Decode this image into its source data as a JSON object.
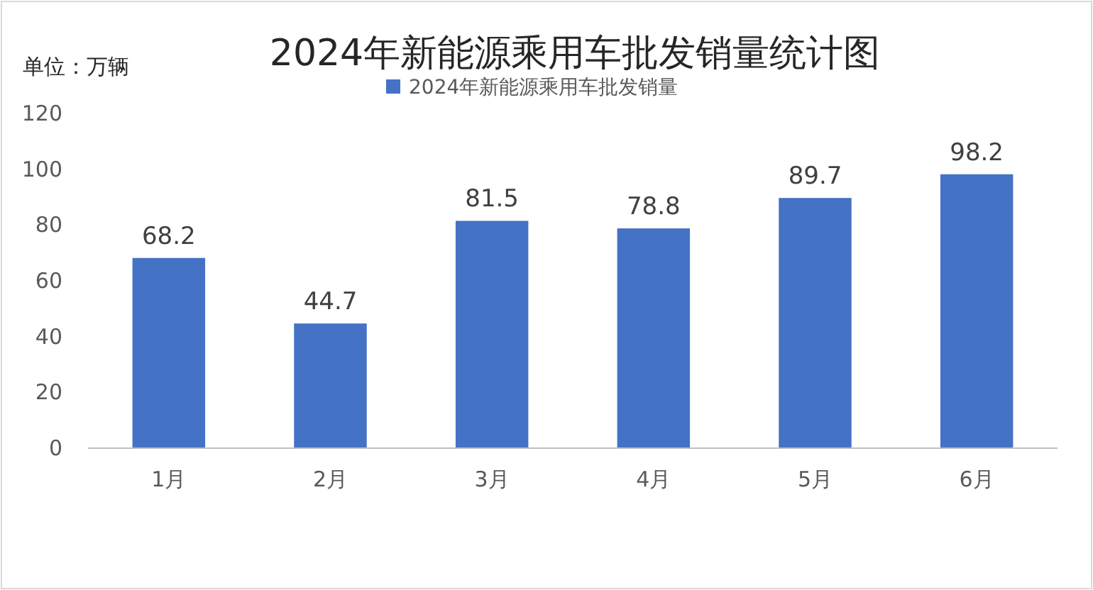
{
  "chart_data": {
    "type": "bar",
    "title": "2024年新能源乘用车批发销量统计图",
    "annotations": [
      "单位：万辆"
    ],
    "categories": [
      "1月",
      "2月",
      "3月",
      "4月",
      "5月",
      "6月"
    ],
    "series": [
      {
        "name": "2024年新能源乘用车批发销量",
        "color": "#4472c4",
        "values": [
          68.2,
          44.7,
          81.5,
          78.8,
          89.7,
          98.2
        ]
      }
    ],
    "ylim": [
      0,
      120
    ],
    "yticks": [
      0,
      20,
      40,
      60,
      80,
      100,
      120
    ],
    "grid": false,
    "legend": "top",
    "data_labels": true
  }
}
